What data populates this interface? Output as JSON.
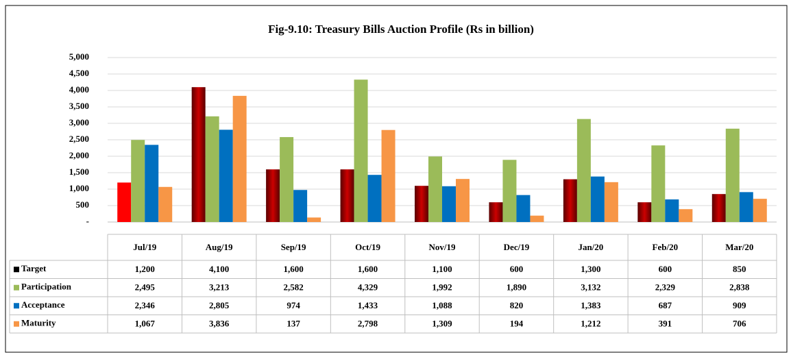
{
  "chart_data": {
    "type": "bar",
    "title": "Fig-9.10: Treasury Bills Auction Profile (Rs in billion)",
    "categories": [
      "Jul/19",
      "Aug/19",
      "Sep/19",
      "Oct/19",
      "Nov/19",
      "Dec/19",
      "Jan/20",
      "Feb/20",
      "Mar/20"
    ],
    "series": [
      {
        "name": "Target",
        "color": "#8b0000",
        "colors": [
          "#ff0000",
          "#8b0000",
          "#8b0000",
          "#8b0000",
          "#8b0000",
          "#8b0000",
          "#8b0000",
          "#8b0000",
          "#8b0000"
        ],
        "values": [
          1200,
          4100,
          1600,
          1600,
          1100,
          600,
          1300,
          600,
          850
        ],
        "value_labels": [
          "1,200",
          "4,100",
          "1,600",
          "1,600",
          "1,100",
          "600",
          "1,300",
          "600",
          "850"
        ]
      },
      {
        "name": "Participation",
        "color": "#9bbb59",
        "values": [
          2495,
          3213,
          2582,
          4329,
          1992,
          1890,
          3132,
          2329,
          2838
        ],
        "value_labels": [
          "2,495",
          "3,213",
          "2,582",
          "4,329",
          "1,992",
          "1,890",
          "3,132",
          "2,329",
          "2,838"
        ]
      },
      {
        "name": "Acceptance",
        "color": "#0070c0",
        "values": [
          2346,
          2805,
          974,
          1433,
          1088,
          820,
          1383,
          687,
          909
        ],
        "value_labels": [
          "2,346",
          "2,805",
          "974",
          "1,433",
          "1,088",
          "820",
          "1,383",
          "687",
          "909"
        ]
      },
      {
        "name": "Maturity",
        "color": "#f79646",
        "values": [
          1067,
          3836,
          137,
          2798,
          1309,
          194,
          1212,
          391,
          706
        ],
        "value_labels": [
          "1,067",
          "3,836",
          "137",
          "2,798",
          "1,309",
          "194",
          "1,212",
          "391",
          "706"
        ]
      }
    ],
    "ylim": [
      0,
      5000
    ],
    "yticks": [
      {
        "value": 0,
        "label": "-"
      },
      500,
      {
        "value": 1000,
        "label": "1,000"
      },
      {
        "value": 1500,
        "label": "1,500"
      },
      {
        "value": 2000,
        "label": "2,000"
      },
      {
        "value": 2500,
        "label": "2,500"
      },
      {
        "value": 3000,
        "label": "3,000"
      },
      {
        "value": 3500,
        "label": "3,500"
      },
      {
        "value": 4000,
        "label": "4,000"
      },
      {
        "value": 4500,
        "label": "4,500"
      },
      {
        "value": 5000,
        "label": "5,000"
      }
    ],
    "grid": true
  }
}
